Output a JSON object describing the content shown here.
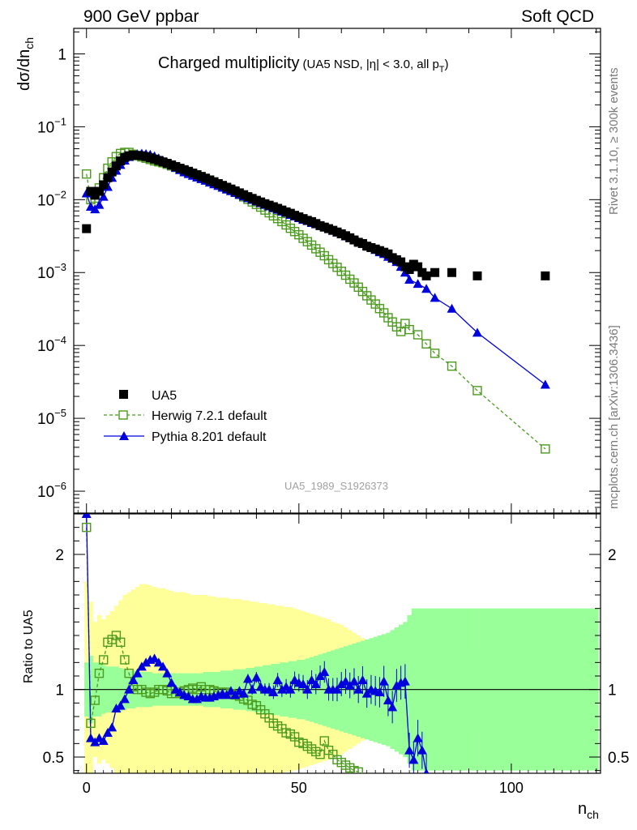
{
  "chart_data": {
    "type": "scatter",
    "header_left": "900 GeV ppbar",
    "header_right": "Soft QCD",
    "title": "Charged multiplicity",
    "title_sub": "(UA5 NSD, |η| < 3.0, all p",
    "title_sub_T": "T",
    "title_sub_end": ")",
    "ylabel_main": "dσ/dn",
    "ylabel_main_sub": "ch",
    "ylabel_ratio": "Ratio to UA5",
    "xlabel": "n",
    "xlabel_sub": "ch",
    "analysis_id": "UA5_1989_S1926373",
    "side_text_top": "Rivet 3.1.10, ≥ 300k events",
    "side_text_bottom": "mcplots.cern.ch [arXiv:1306.3436]",
    "xlim": [
      -3,
      121
    ],
    "ylim_main_log10": [
      -6.3,
      0.35
    ],
    "ylim_ratio": [
      0.38,
      2.3
    ],
    "y_scale_main": "log",
    "x_ticks": [
      0,
      50,
      100
    ],
    "y_ticks_main": [
      {
        "value": 1,
        "base": "1",
        "exp": ""
      },
      {
        "value": 0.1,
        "base": "10",
        "exp": "−1"
      },
      {
        "value": 0.01,
        "base": "10",
        "exp": "−2"
      },
      {
        "value": 0.001,
        "base": "10",
        "exp": "−3"
      },
      {
        "value": 0.0001,
        "base": "10",
        "exp": "−4"
      },
      {
        "value": 1e-05,
        "base": "10",
        "exp": "−5"
      },
      {
        "value": 1e-06,
        "base": "10",
        "exp": "−6"
      }
    ],
    "y_ticks_ratio": [
      {
        "value": 2,
        "label": "2"
      },
      {
        "value": 1,
        "label": "1"
      },
      {
        "value": 0.5,
        "label": "0.5"
      }
    ],
    "legend": {
      "position": "bottom-left",
      "entries": [
        {
          "label": "UA5",
          "series": "ua5"
        },
        {
          "label": "Herwig 7.2.1 default",
          "series": "herwig"
        },
        {
          "label": "Pythia 8.201 default",
          "series": "pythia"
        }
      ]
    },
    "series": [
      {
        "id": "ua5",
        "name": "UA5",
        "color": "#000000",
        "marker": "filled-square",
        "x": [
          0,
          1,
          2,
          3,
          4,
          5,
          6,
          7,
          8,
          9,
          10,
          11,
          12,
          13,
          14,
          15,
          16,
          17,
          18,
          19,
          20,
          21,
          22,
          23,
          24,
          25,
          26,
          27,
          28,
          29,
          30,
          31,
          32,
          33,
          34,
          35,
          36,
          37,
          38,
          39,
          40,
          41,
          42,
          43,
          44,
          45,
          46,
          47,
          48,
          49,
          50,
          51,
          52,
          53,
          54,
          55,
          56,
          57,
          58,
          59,
          60,
          61,
          62,
          63,
          64,
          65,
          66,
          67,
          68,
          69,
          70,
          71,
          72,
          73,
          74,
          75,
          76,
          77,
          78,
          79,
          80,
          82,
          86,
          92,
          108
        ],
        "y": [
          0.004,
          0.013,
          0.0115,
          0.013,
          0.016,
          0.02,
          0.024,
          0.029,
          0.034,
          0.038,
          0.04,
          0.041,
          0.0405,
          0.04,
          0.039,
          0.0375,
          0.036,
          0.0345,
          0.033,
          0.0315,
          0.03,
          0.0285,
          0.027,
          0.0258,
          0.0245,
          0.0232,
          0.022,
          0.0208,
          0.0197,
          0.0186,
          0.0176,
          0.0166,
          0.0157,
          0.0148,
          0.014,
          0.0132,
          0.0124,
          0.0117,
          0.011,
          0.0104,
          0.0098,
          0.0093,
          0.0088,
          0.0084,
          0.008,
          0.0076,
          0.0072,
          0.0068,
          0.0065,
          0.0061,
          0.0058,
          0.0055,
          0.0052,
          0.005,
          0.0047,
          0.0044,
          0.0042,
          0.004,
          0.0038,
          0.0036,
          0.0034,
          0.0032,
          0.003,
          0.0028,
          0.0026,
          0.0025,
          0.0023,
          0.0022,
          0.0021,
          0.002,
          0.0019,
          0.0018,
          0.0016,
          0.0015,
          0.0014,
          0.0012,
          0.0011,
          0.0013,
          0.0012,
          0.001,
          0.0009,
          0.001,
          0.001,
          0.0009,
          0.0009
        ]
      },
      {
        "id": "herwig",
        "name": "Herwig 7.2.1 default",
        "color": "#4c9a1e",
        "marker": "open-square",
        "line": "dashed",
        "x": [
          0,
          1,
          2,
          3,
          4,
          5,
          6,
          7,
          8,
          9,
          10,
          11,
          12,
          13,
          14,
          15,
          16,
          17,
          18,
          19,
          20,
          21,
          22,
          23,
          24,
          25,
          26,
          27,
          28,
          29,
          30,
          31,
          32,
          33,
          34,
          35,
          36,
          37,
          38,
          39,
          40,
          41,
          42,
          43,
          44,
          45,
          46,
          47,
          48,
          49,
          50,
          51,
          52,
          53,
          54,
          55,
          56,
          57,
          58,
          59,
          60,
          61,
          62,
          63,
          64,
          65,
          66,
          67,
          68,
          69,
          70,
          71,
          72,
          73,
          74,
          75,
          76,
          78,
          80,
          82,
          86,
          92,
          108
        ],
        "y": [
          0.0225,
          0.01,
          0.0105,
          0.0145,
          0.02,
          0.027,
          0.033,
          0.039,
          0.043,
          0.0445,
          0.0445,
          0.042,
          0.04,
          0.0385,
          0.037,
          0.0355,
          0.034,
          0.033,
          0.032,
          0.0305,
          0.029,
          0.0277,
          0.0264,
          0.0252,
          0.024,
          0.0229,
          0.0218,
          0.0207,
          0.0196,
          0.0186,
          0.0175,
          0.0165,
          0.0155,
          0.0145,
          0.0136,
          0.0126,
          0.0118,
          0.0109,
          0.0101,
          0.0093,
          0.0086,
          0.0079,
          0.0072,
          0.0066,
          0.006,
          0.0055,
          0.005,
          0.0045,
          0.00405,
          0.00365,
          0.0033,
          0.00295,
          0.00265,
          0.00238,
          0.00212,
          0.0019,
          0.0017,
          0.0015,
          0.00133,
          0.00118,
          0.00104,
          0.00092,
          0.00081,
          0.00072,
          0.00063,
          0.00055,
          0.00048,
          0.00042,
          0.00037,
          0.00032,
          0.00028,
          0.00024,
          0.00021,
          0.00018,
          0.000155,
          0.0002,
          0.000165,
          0.00014,
          0.000105,
          7.8e-05,
          5.2e-05,
          2.4e-05,
          3.8e-06
        ]
      },
      {
        "id": "pythia",
        "name": "Pythia 8.201 default",
        "color": "#0000dd",
        "marker": "filled-triangle",
        "line": "solid",
        "x": [
          0,
          1,
          2,
          3,
          4,
          5,
          6,
          7,
          8,
          9,
          10,
          11,
          12,
          13,
          14,
          15,
          16,
          17,
          18,
          19,
          20,
          21,
          22,
          23,
          24,
          25,
          26,
          27,
          28,
          29,
          30,
          31,
          32,
          33,
          34,
          35,
          36,
          37,
          38,
          39,
          40,
          41,
          42,
          43,
          44,
          45,
          46,
          47,
          48,
          49,
          50,
          51,
          52,
          53,
          54,
          55,
          56,
          57,
          58,
          59,
          60,
          61,
          62,
          63,
          64,
          65,
          66,
          67,
          68,
          69,
          70,
          71,
          72,
          73,
          74,
          75,
          76,
          78,
          80,
          82,
          86,
          92,
          108
        ],
        "y": [
          0.0122,
          0.008,
          0.0074,
          0.0085,
          0.011,
          0.015,
          0.02,
          0.025,
          0.03,
          0.0345,
          0.0385,
          0.041,
          0.042,
          0.043,
          0.0425,
          0.0415,
          0.0395,
          0.037,
          0.0345,
          0.032,
          0.0295,
          0.0275,
          0.0255,
          0.0238,
          0.0225,
          0.0213,
          0.0202,
          0.0192,
          0.0182,
          0.0172,
          0.0163,
          0.0155,
          0.0146,
          0.0138,
          0.0131,
          0.0124,
          0.0117,
          0.0111,
          0.0105,
          0.01,
          0.0095,
          0.009,
          0.0085,
          0.0081,
          0.0077,
          0.0073,
          0.0069,
          0.0066,
          0.0062,
          0.0059,
          0.0056,
          0.0053,
          0.0051,
          0.0048,
          0.0046,
          0.0044,
          0.0042,
          0.004,
          0.00375,
          0.00355,
          0.00335,
          0.00315,
          0.003,
          0.0028,
          0.00265,
          0.0025,
          0.00235,
          0.0022,
          0.00205,
          0.0019,
          0.0018,
          0.00165,
          0.00155,
          0.0014,
          0.0012,
          0.001,
          0.0008,
          0.0007,
          0.0006,
          0.00045,
          0.00032,
          0.00015,
          2.9e-05
        ]
      }
    ],
    "ratio": {
      "herwig": {
        "x": [
          0,
          1,
          2,
          3,
          4,
          5,
          6,
          7,
          8,
          9,
          10,
          11,
          12,
          13,
          14,
          15,
          16,
          17,
          18,
          19,
          20,
          21,
          22,
          23,
          24,
          25,
          26,
          27,
          28,
          29,
          30,
          31,
          32,
          33,
          34,
          35,
          36,
          37,
          38,
          39,
          40,
          41,
          42,
          43,
          44,
          45,
          46,
          47,
          48,
          49,
          50,
          51,
          52,
          53,
          54,
          55,
          56,
          57,
          58,
          59,
          60,
          61,
          62,
          63,
          64
        ],
        "y": [
          2.2,
          0.75,
          0.92,
          1.12,
          1.22,
          1.35,
          1.37,
          1.4,
          1.35,
          1.22,
          1.12,
          1.02,
          1.0,
          1.0,
          0.98,
          0.97,
          0.98,
          1.0,
          1.0,
          0.99,
          0.97,
          0.97,
          0.98,
          0.99,
          1.0,
          1.01,
          1.0,
          1.02,
          1.0,
          1.0,
          0.99,
          0.98,
          0.98,
          0.98,
          0.97,
          0.96,
          0.95,
          0.93,
          0.92,
          0.89,
          0.88,
          0.85,
          0.82,
          0.79,
          0.75,
          0.73,
          0.71,
          0.68,
          0.67,
          0.65,
          0.61,
          0.6,
          0.58,
          0.56,
          0.54,
          0.52,
          0.62,
          0.55,
          0.52,
          0.48,
          0.46,
          0.44,
          0.42,
          0.4,
          0.39
        ]
      },
      "pythia": {
        "x": [
          0,
          1,
          2,
          3,
          4,
          5,
          6,
          7,
          8,
          9,
          10,
          11,
          12,
          13,
          14,
          15,
          16,
          17,
          18,
          19,
          20,
          21,
          22,
          23,
          24,
          25,
          26,
          27,
          28,
          29,
          30,
          31,
          32,
          33,
          34,
          35,
          36,
          37,
          38,
          39,
          40,
          41,
          42,
          43,
          44,
          45,
          46,
          47,
          48,
          49,
          50,
          51,
          52,
          53,
          54,
          55,
          56,
          57,
          58,
          59,
          60,
          61,
          62,
          63,
          64,
          65,
          66,
          67,
          68,
          69,
          70,
          71,
          72,
          73,
          74,
          75,
          76,
          77,
          78,
          79,
          80
        ],
        "y": [
          2.3,
          0.64,
          0.61,
          0.64,
          0.62,
          0.68,
          0.72,
          0.86,
          0.88,
          0.93,
          1.0,
          1.07,
          1.12,
          1.17,
          1.2,
          1.22,
          1.23,
          1.2,
          1.17,
          1.12,
          1.05,
          1.0,
          0.98,
          0.96,
          0.95,
          0.93,
          0.93,
          0.95,
          0.94,
          0.94,
          0.95,
          0.96,
          0.97,
          0.96,
          0.99,
          0.96,
          0.99,
          0.97,
          1.08,
          1.0,
          1.09,
          1.02,
          1.0,
          1.0,
          0.98,
          1.07,
          1.0,
          1.02,
          1.0,
          1.07,
          1.05,
          1.04,
          1.0,
          1.07,
          1.04,
          1.1,
          1.13,
          1.0,
          1.0,
          1.0,
          1.04,
          1.06,
          1.03,
          1.06,
          1.0,
          1.07,
          0.97,
          1.0,
          0.99,
          0.98,
          1.06,
          0.92,
          0.87,
          1.03,
          1.05,
          1.06,
          0.55,
          0.48,
          0.64,
          0.55,
          0.38
        ]
      }
    },
    "uncertainty_bands": {
      "x": [
        0,
        1,
        2,
        3,
        4,
        5,
        6,
        7,
        8,
        9,
        10,
        11,
        12,
        13,
        14,
        15,
        16,
        17,
        18,
        19,
        20,
        21,
        22,
        23,
        24,
        25,
        26,
        27,
        28,
        29,
        30,
        31,
        32,
        33,
        34,
        35,
        36,
        37,
        38,
        39,
        40,
        41,
        42,
        43,
        44,
        45,
        46,
        47,
        48,
        49,
        50,
        51,
        52,
        53,
        54,
        55,
        56,
        57,
        58,
        59,
        60,
        61,
        62,
        63,
        64,
        65,
        66,
        67,
        68,
        69,
        70,
        71,
        72,
        73,
        74,
        75,
        76,
        77,
        78,
        79,
        80,
        81,
        82,
        83,
        84,
        85,
        86,
        87,
        88,
        89,
        90,
        91,
        92,
        93,
        94,
        95,
        96,
        97,
        98,
        99,
        100,
        101,
        102,
        103,
        104,
        105,
        106,
        107,
        108,
        109,
        110,
        111,
        112,
        113,
        114,
        115,
        116,
        117,
        118,
        119,
        120
      ],
      "yellow": [
        0.8,
        0.65,
        0.5,
        0.55,
        0.52,
        0.55,
        0.58,
        0.62,
        0.66,
        0.7,
        0.72,
        0.74,
        0.76,
        0.78,
        0.78,
        0.77,
        0.76,
        0.75,
        0.75,
        0.74,
        0.73,
        0.72,
        0.72,
        0.72,
        0.71,
        0.7,
        0.7,
        0.7,
        0.7,
        0.69,
        0.69,
        0.68,
        0.68,
        0.68,
        0.67,
        0.67,
        0.67,
        0.66,
        0.66,
        0.65,
        0.65,
        0.64,
        0.64,
        0.63,
        0.63,
        0.62,
        0.62,
        0.61,
        0.61,
        0.6,
        0.59,
        0.58,
        0.57,
        0.56,
        0.55,
        0.54,
        0.53,
        0.52,
        0.5,
        0.49,
        0.48,
        0.46,
        0.44,
        0.42,
        0.4,
        0.38,
        0.36,
        0.35,
        0.34,
        0.32,
        0.3,
        0.28,
        0.26,
        0.25,
        0.25,
        0.25,
        0.3,
        0.3,
        0.3,
        0.3,
        0.3,
        0.3,
        0.3,
        0.3,
        0.3,
        0.3,
        0.3,
        0.3,
        0.3,
        0.3,
        0.3,
        0.3,
        0.3,
        0.3,
        0.3,
        0.3,
        0.3,
        0.3,
        0.3,
        0.3,
        0.3,
        0.3,
        0.3,
        0.3,
        0.3,
        0.3,
        0.3,
        0.3,
        0.3,
        0.3,
        0.3,
        0.3,
        0.3,
        0.3,
        0.3,
        0.3,
        0.3,
        0.3,
        0.3,
        0.3,
        0.3
      ],
      "green": [
        0.2,
        0.25,
        0.2,
        0.2,
        0.18,
        0.17,
        0.17,
        0.17,
        0.16,
        0.15,
        0.14,
        0.14,
        0.13,
        0.13,
        0.13,
        0.13,
        0.12,
        0.12,
        0.12,
        0.12,
        0.12,
        0.12,
        0.12,
        0.12,
        0.12,
        0.12,
        0.12,
        0.12,
        0.13,
        0.13,
        0.13,
        0.13,
        0.14,
        0.14,
        0.14,
        0.15,
        0.15,
        0.15,
        0.16,
        0.16,
        0.17,
        0.17,
        0.18,
        0.18,
        0.19,
        0.19,
        0.2,
        0.2,
        0.21,
        0.21,
        0.22,
        0.22,
        0.23,
        0.24,
        0.25,
        0.26,
        0.27,
        0.28,
        0.29,
        0.3,
        0.31,
        0.32,
        0.33,
        0.34,
        0.35,
        0.36,
        0.37,
        0.38,
        0.39,
        0.4,
        0.41,
        0.42,
        0.44,
        0.46,
        0.48,
        0.5,
        0.55,
        0.6,
        0.6,
        0.6,
        0.6,
        0.6,
        0.6,
        0.6,
        0.6,
        0.6,
        0.6,
        0.6,
        0.6,
        0.6,
        0.6,
        0.6,
        0.6,
        0.6,
        0.6,
        0.6,
        0.6,
        0.6,
        0.6,
        0.6,
        0.6,
        0.6,
        0.6,
        0.6,
        0.6,
        0.6,
        0.6,
        0.6,
        0.6,
        0.6,
        0.6,
        0.6,
        0.6,
        0.6,
        0.6,
        0.6,
        0.6,
        0.6,
        0.6,
        0.6,
        0.6
      ]
    }
  }
}
